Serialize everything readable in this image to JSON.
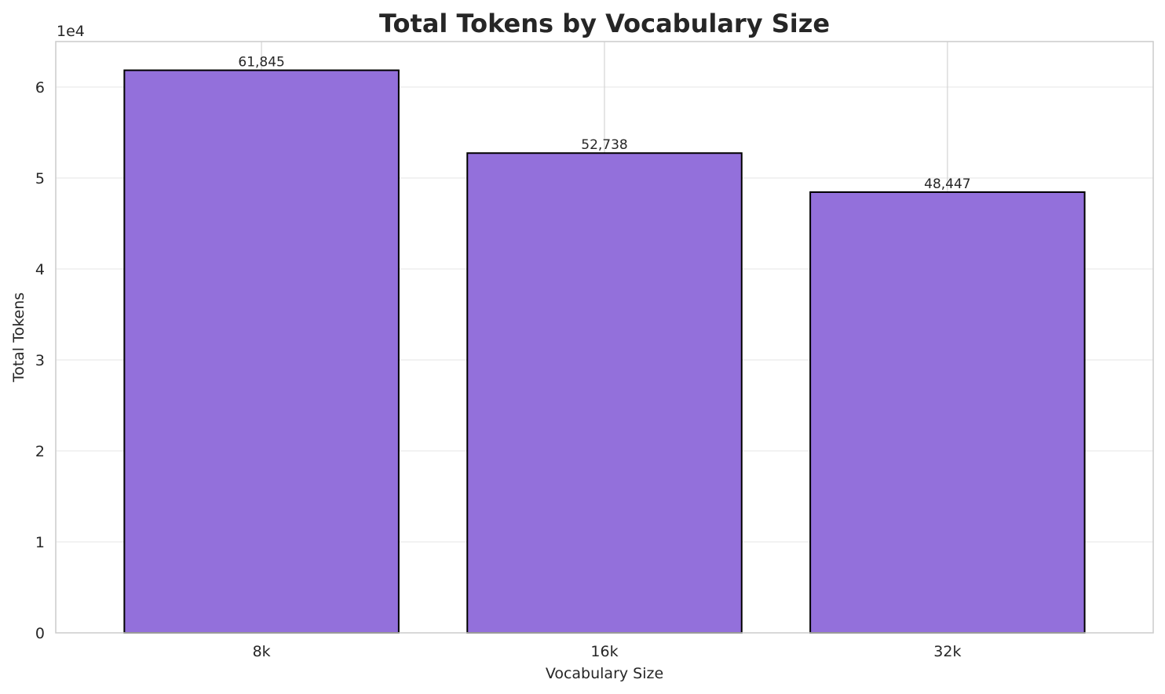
{
  "chart_data": {
    "type": "bar",
    "title": "Total Tokens by Vocabulary Size",
    "xlabel": "Vocabulary Size",
    "ylabel": "Total Tokens",
    "y_offset_label": "1e4",
    "y_scale": 10000,
    "categories": [
      "8k",
      "16k",
      "32k"
    ],
    "values": [
      61845,
      52738,
      48447
    ],
    "value_labels": [
      "61,845",
      "52,738",
      "48,447"
    ],
    "ylim": [
      0,
      65000
    ],
    "yticks": [
      0,
      10000,
      20000,
      30000,
      40000,
      50000,
      60000
    ],
    "ytick_labels": [
      "0",
      "1",
      "2",
      "3",
      "4",
      "5",
      "6"
    ],
    "grid": true,
    "legend": false,
    "colors": {
      "bar": "#9370db",
      "bar_edge": "#000000",
      "grid": "#ebebeb",
      "axes_edge": "#cccccc",
      "text": "#262626"
    }
  }
}
